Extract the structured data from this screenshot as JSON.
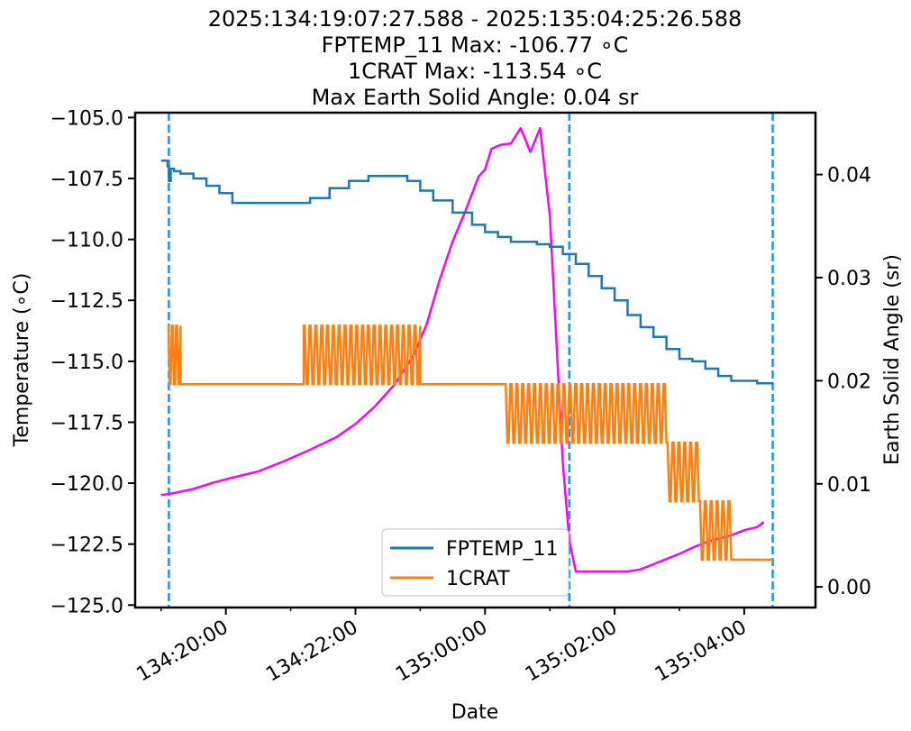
{
  "chart_data": {
    "type": "line",
    "title_lines": [
      "2025:134:19:07:27.588 - 2025:135:04:25:26.588",
      "FPTEMP_11 Max: -106.77  ∘C",
      "1CRAT Max: -113.54  ∘C",
      "Max Earth Solid Angle: 0.04 sr"
    ],
    "xlabel": "Date",
    "ylabel_left": "Temperature ($^\\circ$C)",
    "ylabel_left_display": "Temperature (∘C)",
    "ylabel_right": "Earth Solid Angle (sr)",
    "x_tick_labels": [
      "134:20:00",
      "134:22:00",
      "135:00:00",
      "135:02:00",
      "135:04:00"
    ],
    "x_range_hours": [
      18.6,
      29.1
    ],
    "x_tick_hours": [
      20,
      22,
      24,
      26,
      28
    ],
    "x_minor_tick_hours": [
      19,
      21,
      23,
      25,
      27
    ],
    "ylim_left": [
      -125.1,
      -104.8
    ],
    "y_ticks_left": [
      -105.0,
      -107.5,
      -110.0,
      -112.5,
      -115.0,
      -117.5,
      -120.0,
      -122.5,
      -125.0
    ],
    "y_tick_labels_left": [
      "−105.0",
      "−107.5",
      "−110.0",
      "−112.5",
      "−115.0",
      "−117.5",
      "−120.0",
      "−122.5",
      "−125.0"
    ],
    "ylim_right": [
      -0.002,
      0.046
    ],
    "y_ticks_right": [
      0.0,
      0.01,
      0.02,
      0.03,
      0.04
    ],
    "y_tick_labels_right": [
      "0.00",
      "0.01",
      "0.02",
      "0.03",
      "0.04"
    ],
    "vlines_hours": [
      19.12,
      25.3,
      28.44
    ],
    "legend_location": "lower center",
    "colors": {
      "FPTEMP_11": "#1f77b4",
      "1CRAT": "#ff7f0e",
      "earth_solid_angle": "#ff00ff",
      "vlines": "#1e90ff"
    },
    "series": [
      {
        "name": "FPTEMP_11",
        "axis": "left",
        "x": [
          19.0,
          19.1,
          19.12,
          19.15,
          19.2,
          19.3,
          19.5,
          19.7,
          19.9,
          20.1,
          20.4,
          20.7,
          21.0,
          21.3,
          21.6,
          21.9,
          22.2,
          22.5,
          22.8,
          23.0,
          23.2,
          23.5,
          23.8,
          24.0,
          24.2,
          24.4,
          24.6,
          24.8,
          25.0,
          25.2,
          25.4,
          25.6,
          25.8,
          26.0,
          26.2,
          26.4,
          26.6,
          26.8,
          27.0,
          27.2,
          27.4,
          27.6,
          27.8,
          28.0,
          28.2,
          28.4,
          28.44
        ],
        "values": [
          -106.77,
          -107.0,
          -107.6,
          -107.1,
          -107.2,
          -107.3,
          -107.5,
          -107.8,
          -108.1,
          -108.5,
          -108.5,
          -108.5,
          -108.5,
          -108.3,
          -107.9,
          -107.6,
          -107.4,
          -107.4,
          -107.6,
          -108.0,
          -108.4,
          -108.9,
          -109.4,
          -109.7,
          -109.9,
          -110.1,
          -110.1,
          -110.2,
          -110.3,
          -110.6,
          -111.0,
          -111.5,
          -112.0,
          -112.5,
          -113.1,
          -113.6,
          -114.0,
          -114.5,
          -114.9,
          -115.0,
          -115.3,
          -115.6,
          -115.8,
          -115.8,
          -115.9,
          -115.9,
          -115.9
        ]
      },
      {
        "name": "1CRAT",
        "axis": "left",
        "levels": [
          -113.54,
          -115.94,
          -118.34,
          -120.74,
          -123.14
        ],
        "segments": [
          {
            "x": [
              19.1,
              19.3
            ],
            "high": -113.54,
            "low": -115.94
          },
          {
            "x": [
              19.3,
              21.2
            ],
            "constant": -115.94
          },
          {
            "x": [
              21.2,
              23.0
            ],
            "high": -113.54,
            "low": -115.94
          },
          {
            "x": [
              23.0,
              24.3
            ],
            "constant": -115.94
          },
          {
            "x": [
              24.3,
              26.8
            ],
            "high": -115.94,
            "low": -118.34
          },
          {
            "x": [
              26.8,
              27.3
            ],
            "high": -118.34,
            "low": -120.74
          },
          {
            "x": [
              27.3,
              27.8
            ],
            "high": -120.74,
            "low": -123.14
          },
          {
            "x": [
              27.8,
              28.44
            ],
            "constant": -123.14
          }
        ]
      },
      {
        "name": "Earth Solid Angle",
        "axis": "right",
        "x": [
          19.0,
          19.2,
          19.5,
          19.8,
          20.1,
          20.5,
          20.9,
          21.3,
          21.7,
          22.0,
          22.3,
          22.6,
          22.9,
          23.1,
          23.3,
          23.5,
          23.7,
          23.9,
          24.0,
          24.1,
          24.25,
          24.4,
          24.55,
          24.7,
          24.85,
          25.0,
          25.1,
          25.2,
          25.3,
          25.4,
          25.6,
          25.8,
          26.0,
          26.2,
          26.4,
          26.6,
          26.8,
          27.0,
          27.2,
          27.4,
          27.6,
          27.8,
          28.0,
          28.2,
          28.3
        ],
        "values": [
          0.0089,
          0.0091,
          0.0095,
          0.0101,
          0.0106,
          0.0112,
          0.0122,
          0.0133,
          0.0145,
          0.0158,
          0.0175,
          0.0196,
          0.0225,
          0.0255,
          0.0298,
          0.0335,
          0.0365,
          0.0398,
          0.0405,
          0.0425,
          0.0429,
          0.043,
          0.0445,
          0.0422,
          0.0445,
          0.036,
          0.024,
          0.012,
          0.0045,
          0.0015,
          0.0015,
          0.0015,
          0.0015,
          0.0015,
          0.0017,
          0.0022,
          0.0027,
          0.0032,
          0.0038,
          0.0043,
          0.0047,
          0.005,
          0.0055,
          0.0058,
          0.0063
        ]
      }
    ]
  }
}
